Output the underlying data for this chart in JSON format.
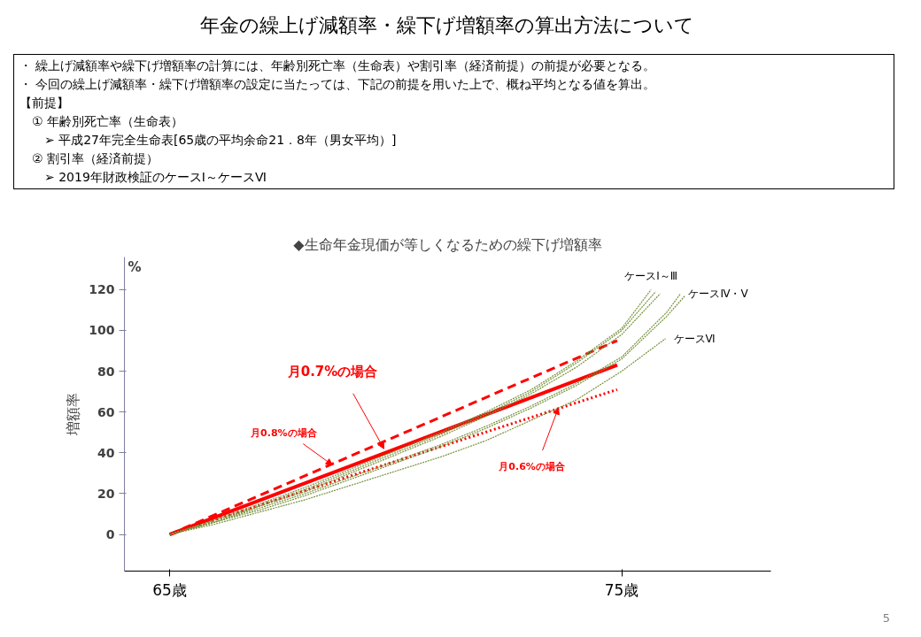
{
  "chart_data": [
    {
      "type": "other",
      "title": "年金の繰上げ減額率・繰下げ増額率の算出方法について",
      "annotations": [
        "・ 繰上げ減額率や繰下げ増額率の計算には、年齢別死亡率（生命表）や割引率（経済前提）の前提が必要となる。",
        "・ 今回の繰上げ減額率・繰下げ増額率の設定に当たっては、下記の前提を用いた上で、概ね平均となる値を算出。",
        "【前提】",
        "　① 年齢別死亡率（生命表）",
        "　　➢ 平成27年完全生命表[65歳の平均余命21．8年（男女平均）]",
        "　② 割引率（経済前提）",
        "　　➢ 2019年財政検証のケースⅠ～ケースⅥ"
      ]
    },
    {
      "type": "line",
      "title": "◆生命年金現価が等しくなるための繰下げ増額率",
      "ylabel": "増額率",
      "xlim": [
        64,
        78.3
      ],
      "xticks": [
        {
          "value": 65,
          "label": "65歳"
        },
        {
          "value": 75,
          "label": "75歳"
        }
      ],
      "ylim": [
        -18,
        136
      ],
      "yticks": [
        0,
        20,
        40,
        60,
        80,
        100,
        120
      ],
      "grid": false,
      "marker": "none",
      "series": [
        {
          "name": "ケースⅠ～Ⅲ",
          "color": "#77933c",
          "line_style": "dotted",
          "x": [
            65,
            66,
            67,
            68,
            69,
            70,
            71,
            72,
            73,
            74,
            75,
            75.65
          ],
          "values": [
            0,
            7,
            15,
            23,
            32,
            41,
            50,
            60,
            71,
            85,
            101,
            120
          ]
        },
        {
          "color": "#77933c",
          "line_style": "dotted",
          "x": [
            65,
            66,
            67,
            68,
            69,
            70,
            71,
            72,
            73,
            74,
            75,
            75.75
          ],
          "values": [
            0,
            7,
            14,
            22,
            31,
            40,
            49,
            59,
            70,
            84,
            100,
            119
          ]
        },
        {
          "color": "#77933c",
          "line_style": "dotted",
          "x": [
            65,
            66,
            67,
            68,
            69,
            70,
            71,
            72,
            73,
            74,
            75,
            75.85
          ],
          "values": [
            0,
            6,
            14,
            21,
            30,
            39,
            48,
            58,
            69,
            82,
            98,
            118
          ]
        },
        {
          "name": "ケースⅣ・Ⅴ",
          "color": "#77933c",
          "line_style": "dotted",
          "x": [
            65,
            66,
            67,
            68,
            69,
            70,
            71,
            72,
            73,
            74,
            75,
            76,
            76.3
          ],
          "values": [
            0,
            6,
            13,
            20,
            28,
            36,
            44,
            53,
            63,
            74,
            87,
            109,
            118
          ]
        },
        {
          "color": "#77933c",
          "line_style": "dotted",
          "x": [
            65,
            66,
            67,
            68,
            69,
            70,
            71,
            72,
            73,
            74,
            75,
            76,
            76.4
          ],
          "values": [
            0,
            6,
            12,
            19,
            27,
            35,
            43,
            52,
            62,
            73,
            86,
            107,
            117
          ]
        },
        {
          "name": "ケースⅥ",
          "color": "#77933c",
          "line_style": "dotted",
          "x": [
            65,
            66,
            67,
            68,
            69,
            70,
            71,
            72,
            73,
            74,
            75,
            75.97
          ],
          "values": [
            0,
            5,
            11,
            17,
            24,
            31,
            38,
            46,
            56,
            66,
            80,
            96
          ]
        },
        {
          "color": "#ff0000",
          "line_style": "dashed",
          "x": [
            65,
            74.9
          ],
          "values": [
            0,
            95
          ]
        },
        {
          "color": "#ff0000",
          "line_style": "solid",
          "x": [
            65,
            74.9
          ],
          "values": [
            0,
            83
          ]
        },
        {
          "color": "#ff0000",
          "line_style": "dotted",
          "x": [
            65,
            74.9
          ],
          "values": [
            0,
            71
          ]
        }
      ],
      "annotations": [
        "%",
        {
          "text": "月0.7%の場合",
          "x": 69.74,
          "y": 42
        },
        {
          "text": "月0.8%の場合",
          "x": 68.6,
          "y": 34
        },
        {
          "text": "月0.6%の場合",
          "x": 73.6,
          "y": 62
        },
        "5"
      ]
    }
  ]
}
